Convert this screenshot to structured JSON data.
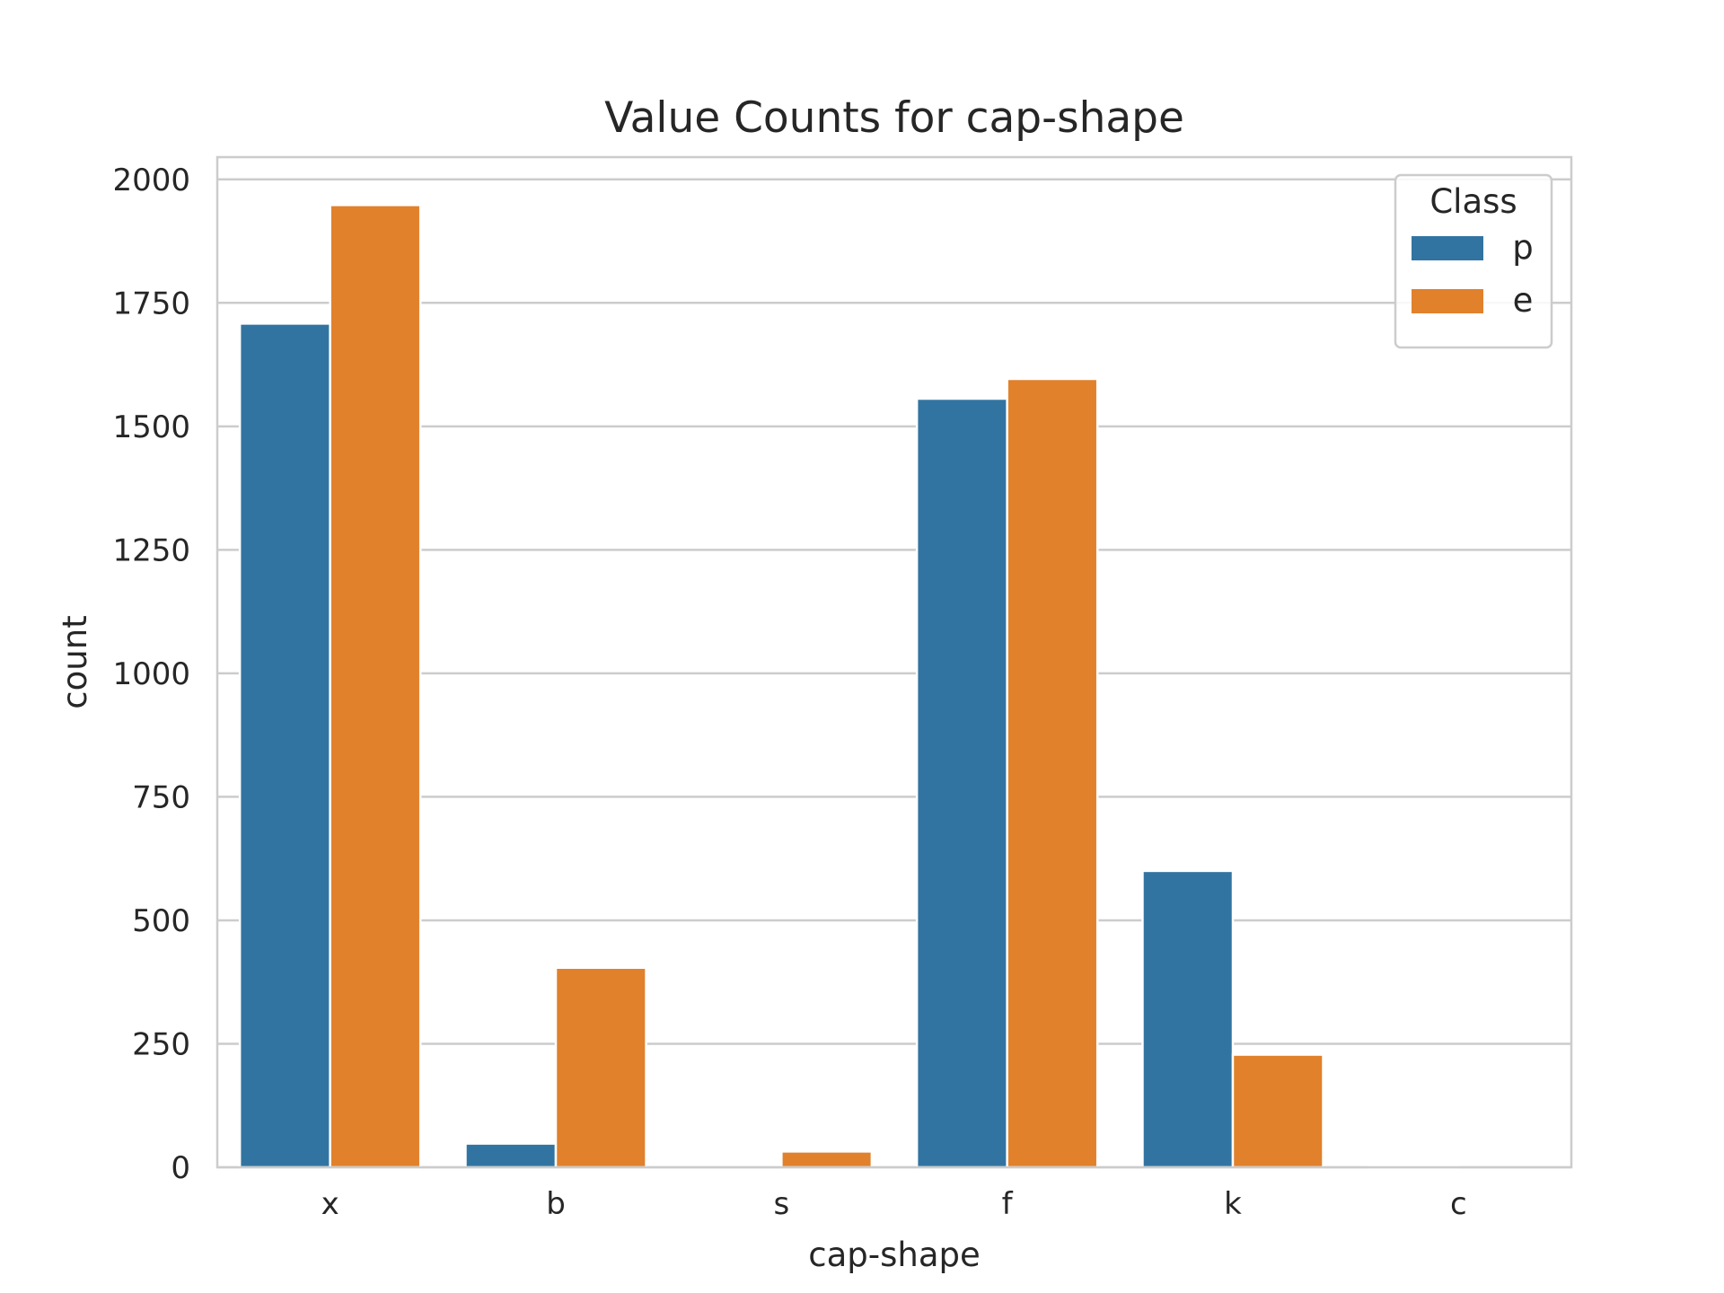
{
  "chart_data": {
    "type": "bar",
    "title": "Value Counts for cap-shape",
    "xlabel": "cap-shape",
    "ylabel": "count",
    "categories": [
      "x",
      "b",
      "s",
      "f",
      "k",
      "c"
    ],
    "series": [
      {
        "name": "p",
        "color": "#3274a1",
        "values": [
          1708,
          48,
          0,
          1556,
          600,
          4
        ]
      },
      {
        "name": "e",
        "color": "#e1812c",
        "values": [
          1948,
          404,
          32,
          1596,
          228,
          0
        ]
      }
    ],
    "ylim": [
      0,
      2045
    ],
    "yticks": [
      0,
      250,
      500,
      750,
      1000,
      1250,
      1500,
      1750,
      2000
    ],
    "grid": "y",
    "legend": {
      "title": "Class",
      "position": "top-right"
    }
  }
}
